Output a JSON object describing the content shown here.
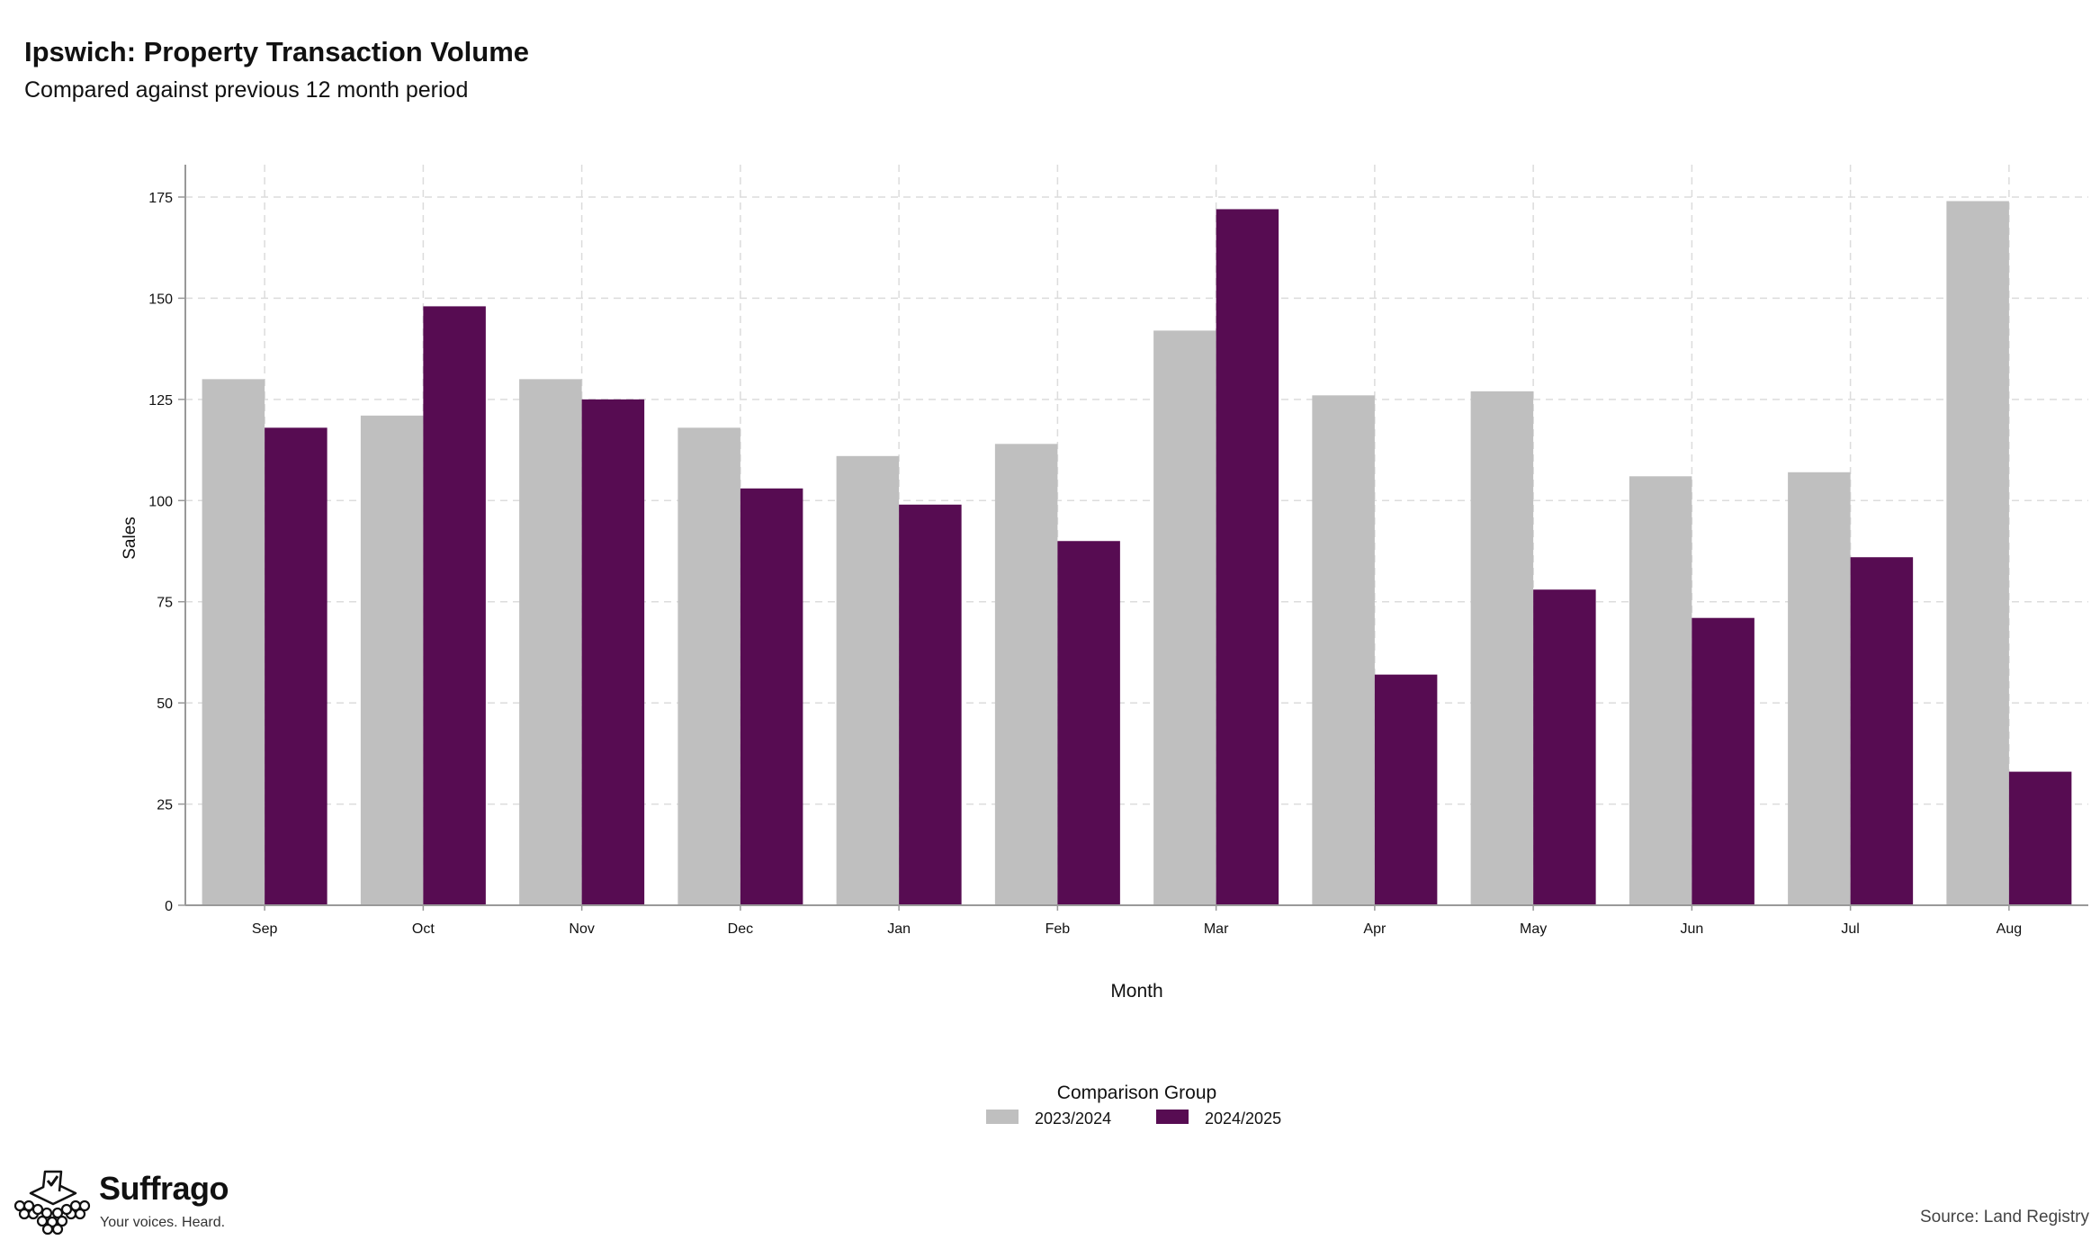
{
  "header": {
    "title": "Ipswich: Property Transaction Volume",
    "subtitle": "Compared against previous 12 month period"
  },
  "legend": {
    "title": "Comparison Group",
    "placement": "bottom-center"
  },
  "brand": {
    "name": "Suffrago",
    "tagline": "Your voices. Heard.",
    "icon": "ballot-box-logo-icon"
  },
  "footer": {
    "source": "Source: Land Registry"
  },
  "colors": {
    "series_2023_2024": "#bfbfbf",
    "series_2024_2025": "#570c52",
    "grid": "#dcdcdc",
    "axis": "#999999"
  },
  "chart_data": {
    "type": "bar",
    "xlabel": "Month",
    "ylabel": "Sales",
    "ylim": [
      0,
      183
    ],
    "yticks": [
      0,
      25,
      50,
      75,
      100,
      125,
      150,
      175
    ],
    "grid": true,
    "categories": [
      "Sep",
      "Oct",
      "Nov",
      "Dec",
      "Jan",
      "Feb",
      "Mar",
      "Apr",
      "May",
      "Jun",
      "Jul",
      "Aug"
    ],
    "series": [
      {
        "name": "2023/2024",
        "color": "#bfbfbf",
        "values": [
          130,
          121,
          130,
          118,
          111,
          114,
          142,
          126,
          127,
          106,
          107,
          174
        ]
      },
      {
        "name": "2024/2025",
        "color": "#570c52",
        "values": [
          118,
          148,
          125,
          103,
          99,
          90,
          172,
          57,
          78,
          71,
          86,
          33
        ]
      }
    ]
  }
}
